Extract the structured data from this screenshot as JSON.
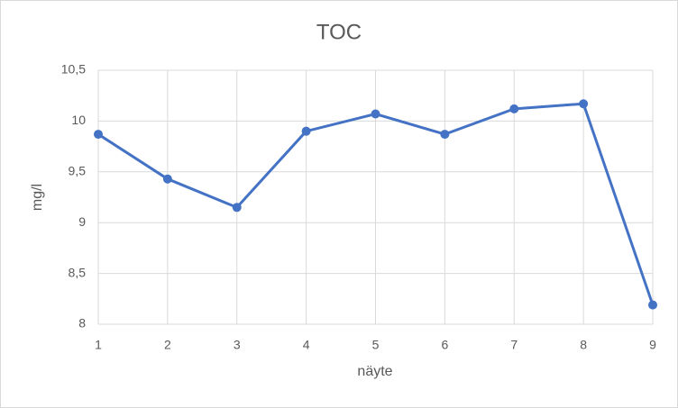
{
  "chart_data": {
    "type": "line",
    "title": "TOC",
    "x_label": "näyte",
    "y_label": "mg/l",
    "x": [
      1,
      2,
      3,
      4,
      5,
      6,
      7,
      8,
      9
    ],
    "series": [
      {
        "name": "TOC",
        "color": "#4472c4",
        "values": [
          9.87,
          9.43,
          9.15,
          9.9,
          10.07,
          9.87,
          10.12,
          10.17,
          8.19
        ]
      }
    ],
    "xlim": [
      1,
      9
    ],
    "xticks": [
      1,
      2,
      3,
      4,
      5,
      6,
      7,
      8,
      9
    ],
    "ylim": [
      8,
      10.5
    ],
    "yticks": [
      8,
      {
        "value": 8.5,
        "label": "8,5"
      },
      9,
      {
        "value": 9.5,
        "label": "9,5"
      },
      10,
      {
        "value": 10.5,
        "label": "10,5"
      }
    ],
    "grid": true
  }
}
